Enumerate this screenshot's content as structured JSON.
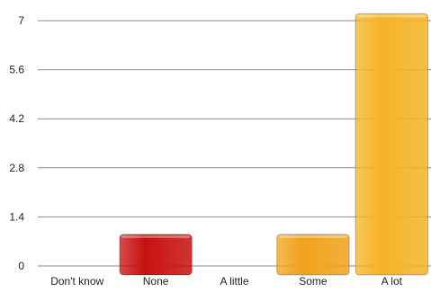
{
  "chart_data": {
    "type": "bar",
    "categories": [
      "Don't know",
      "None",
      "A little",
      "Some",
      "A lot"
    ],
    "values": [
      0,
      0.9,
      0,
      0.9,
      7.2
    ],
    "bar_colors": [
      "#c9a227",
      "#c81010",
      "#e6a023",
      "#f1a21a",
      "#f5b326"
    ],
    "y_ticks": [
      "0",
      "1.4",
      "2.8",
      "4.2",
      "5.6",
      "7"
    ],
    "ylim": [
      0,
      7
    ],
    "grid": true,
    "title": "",
    "xlabel": "",
    "ylabel": ""
  }
}
